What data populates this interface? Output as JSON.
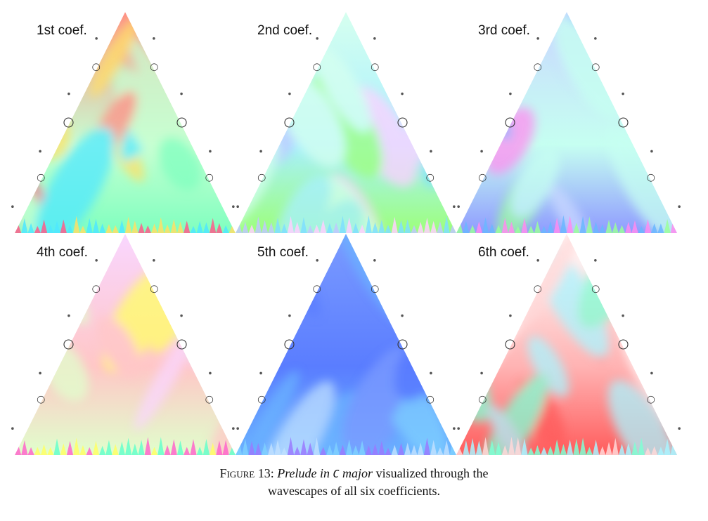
{
  "panels": [
    {
      "title": "1st coef.",
      "palette": [
        "#ff8f86",
        "#c7ffd2",
        "#7fffbf",
        "#ffe066",
        "#ff5c8a",
        "#4fe8ff"
      ]
    },
    {
      "title": "2nd coef.",
      "palette": [
        "#d6ffef",
        "#a8f0ff",
        "#9dff7a",
        "#c0c8ff",
        "#7fe0ff",
        "#ffd0ff"
      ]
    },
    {
      "title": "3rd coef.",
      "palette": [
        "#c9d8ff",
        "#c6fff1",
        "#8f9bff",
        "#ff8cf0",
        "#9bff9b",
        "#6ab8ff"
      ]
    },
    {
      "title": "4th coef.",
      "palette": [
        "#f9d6ff",
        "#ffc7c7",
        "#e0ffcc",
        "#ff66cc",
        "#ffff66",
        "#66ffcc"
      ]
    },
    {
      "title": "5th coef.",
      "palette": [
        "#7b9bff",
        "#5a7dff",
        "#6ab3ff",
        "#9b7bff",
        "#7fd0ff",
        "#c0e0ff"
      ]
    },
    {
      "title": "6th coef.",
      "palette": [
        "#ffffff",
        "#ffb3b3",
        "#ff5c5c",
        "#aaf4ff",
        "#ffd9d9",
        "#7fffd4"
      ]
    }
  ],
  "caption": {
    "label": "Figure 13:",
    "title_italic_1": "Prelude in",
    "title_mono": "C",
    "title_italic_2": "major",
    "text_1": "visualized through the",
    "text_2": "wavescapes of all six coefficients."
  }
}
